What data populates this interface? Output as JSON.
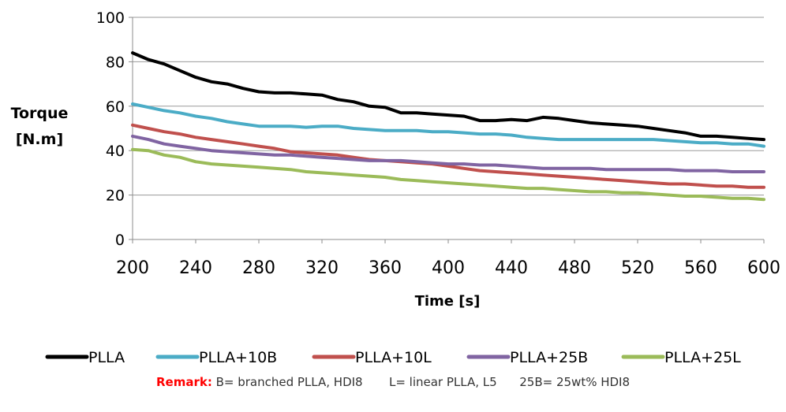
{
  "chart_data": {
    "type": "line",
    "xlabel": "Time [s]",
    "ylabel_lines": [
      "Torque",
      "[N.m]"
    ],
    "xlim": [
      200,
      600
    ],
    "ylim": [
      0,
      100
    ],
    "x_ticks": [
      200,
      240,
      280,
      320,
      360,
      400,
      440,
      480,
      520,
      560,
      600
    ],
    "y_ticks": [
      0,
      20,
      40,
      60,
      80,
      100
    ],
    "grid": "horizontal",
    "legend_position": "bottom",
    "x": [
      200,
      210,
      220,
      230,
      240,
      250,
      260,
      270,
      280,
      290,
      300,
      310,
      320,
      330,
      340,
      350,
      360,
      370,
      380,
      390,
      400,
      410,
      420,
      430,
      440,
      450,
      460,
      470,
      480,
      490,
      500,
      510,
      520,
      530,
      540,
      550,
      560,
      570,
      580,
      590,
      600
    ],
    "series": [
      {
        "name": "PLLA",
        "color": "#000000",
        "values": [
          84,
          81,
          79,
          76,
          73,
          71,
          70,
          68,
          66.5,
          66,
          66,
          65.5,
          65,
          63,
          62,
          60,
          59.5,
          57,
          57,
          56.5,
          56,
          55.5,
          53.5,
          53.5,
          54,
          53.5,
          55,
          54.5,
          53.5,
          52.5,
          52,
          51.5,
          51,
          50,
          49,
          48,
          46.5,
          46.5,
          46,
          45.5,
          45
        ]
      },
      {
        "name": "PLLA+10B",
        "color": "#4bacc6",
        "values": [
          61,
          59.5,
          58,
          57,
          55.5,
          54.5,
          53,
          52,
          51,
          51,
          51,
          50.5,
          51,
          51,
          50,
          49.5,
          49,
          49,
          49,
          48.5,
          48.5,
          48,
          47.5,
          47.5,
          47,
          46,
          45.5,
          45,
          45,
          45,
          45,
          45,
          45,
          45,
          44.5,
          44,
          43.5,
          43.5,
          43,
          43,
          42
        ]
      },
      {
        "name": "PLLA+10L",
        "color": "#c0504d",
        "values": [
          51.5,
          50,
          48.5,
          47.5,
          46,
          45,
          44,
          43,
          42,
          41,
          39.5,
          39,
          38.5,
          38,
          37,
          36,
          35.5,
          35,
          34.5,
          34,
          33,
          32,
          31,
          30.5,
          30,
          29.5,
          29,
          28.5,
          28,
          27.5,
          27,
          26.5,
          26,
          25.5,
          25,
          25,
          24.5,
          24,
          24,
          23.5,
          23.5
        ]
      },
      {
        "name": "PLLA+25B",
        "color": "#8064a2",
        "values": [
          46.5,
          45,
          43,
          42,
          41,
          40,
          39.5,
          39,
          38.5,
          38,
          38,
          37.5,
          37,
          36.5,
          36,
          35.5,
          35.5,
          35.5,
          35,
          34.5,
          34,
          34,
          33.5,
          33.5,
          33,
          32.5,
          32,
          32,
          32,
          32,
          31.5,
          31.5,
          31.5,
          31.5,
          31.5,
          31,
          31,
          31,
          30.5,
          30.5,
          30.5
        ]
      },
      {
        "name": "PLLA+25L",
        "color": "#9bbb59",
        "values": [
          40.5,
          40,
          38,
          37,
          35,
          34,
          33.5,
          33,
          32.5,
          32,
          31.5,
          30.5,
          30,
          29.5,
          29,
          28.5,
          28,
          27,
          26.5,
          26,
          25.5,
          25,
          24.5,
          24,
          23.5,
          23,
          23,
          22.5,
          22,
          21.5,
          21.5,
          21,
          21,
          20.5,
          20,
          19.5,
          19.5,
          19,
          18.5,
          18.5,
          18
        ]
      }
    ]
  },
  "remark": {
    "label": "Remark:",
    "text": " B= branched PLLA, HDI8       L= linear PLLA, L5      25B= 25wt% HDI8"
  }
}
